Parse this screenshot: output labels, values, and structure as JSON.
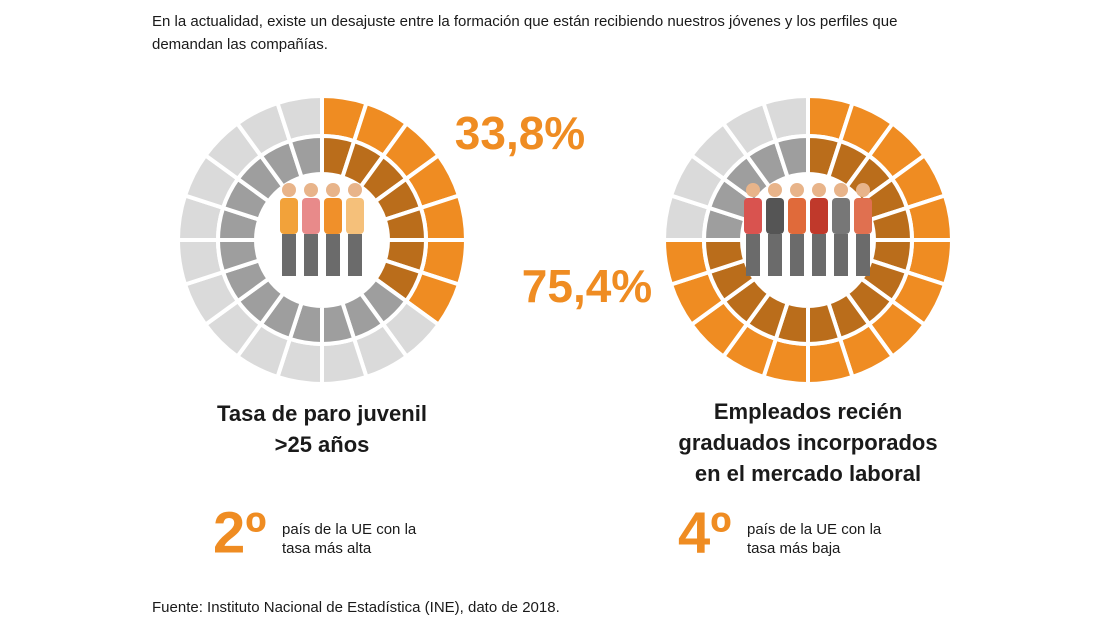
{
  "intro": [
    "En la actualidad, existe un desajuste entre la formación que están recibiendo nuestros jóvenes y los perfiles que",
    "demandan las compañías."
  ],
  "chart_data": [
    {
      "type": "ring",
      "title": [
        "Tasa de paro juvenil",
        ">25 años"
      ],
      "values": [
        33.8
      ],
      "value_labels": [
        "33,8%"
      ],
      "color": "#ef8c22",
      "rank": "2º",
      "rank_text": [
        "país de la UE con la",
        "tasa más alta"
      ]
    },
    {
      "type": "ring",
      "title": [
        "Empleados recién",
        "graduados incorporados",
        "en el mercado laboral"
      ],
      "values": [
        75.4
      ],
      "value_labels": [
        "75,4%"
      ],
      "color": "#ef8c22",
      "rank": "4º",
      "rank_text": [
        "país de la UE con la",
        "tasa más baja"
      ]
    }
  ],
  "source": "Fuente: Instituto Nacional de Estadística (INE), dato de 2018."
}
